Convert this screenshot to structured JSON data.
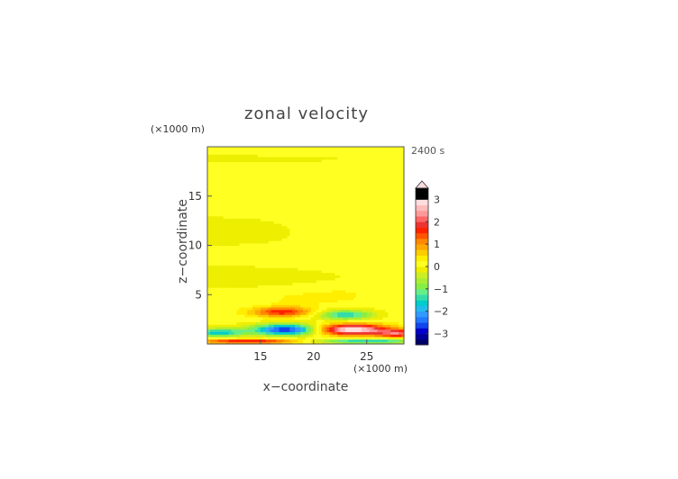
{
  "chart_data": {
    "type": "heatmap",
    "title": "zonal velocity",
    "xlabel": "x−coordinate",
    "ylabel": "z−coordinate",
    "x_unit": "(×1000 m)",
    "y_unit": "(×1000 m)",
    "time_label": "2400 s",
    "xlim": [
      10,
      28.5
    ],
    "ylim": [
      0,
      20
    ],
    "x_ticks": [
      15,
      20,
      25
    ],
    "y_ticks": [
      5,
      10,
      15
    ],
    "x_tick_labels": [
      "15",
      "20",
      "25"
    ],
    "y_tick_labels": [
      "5",
      "10",
      "15"
    ],
    "colorbar": {
      "range": [
        -3.5,
        3.5
      ],
      "step": 0.25,
      "ticks": [
        3,
        2,
        1,
        0,
        -1,
        -2,
        -3
      ],
      "tick_labels": [
        "3",
        "2",
        "1",
        "0",
        "−1",
        "−2",
        "−3"
      ],
      "extend": "max",
      "colors": [
        "#000066",
        "#000099",
        "#0000CC",
        "#1144EE",
        "#2277FF",
        "#3399FF",
        "#22BBEE",
        "#00CCCC",
        "#33DDAA",
        "#66EE88",
        "#88EE44",
        "#AAEE33",
        "#CCEE22",
        "#EEEE00",
        "#FFFF22",
        "#FFEE00",
        "#FFCC00",
        "#FFAA00",
        "#FF8800",
        "#FF5500",
        "#FF2200",
        "#EE3333",
        "#FF6666",
        "#FF9999",
        "#FFBBBB",
        "#FFDDDD"
      ]
    },
    "background_value": 0.1,
    "features": [
      {
        "x": 10.0,
        "z": 18.8,
        "sx": 20,
        "sz": 0.55,
        "value": -0.15
      },
      {
        "x": 10.0,
        "z": 11.5,
        "sx": 20,
        "sz": 2.2,
        "value": -0.15
      },
      {
        "x": 10.0,
        "z": 6.8,
        "sx": 20,
        "sz": 1.6,
        "value": -0.15
      },
      {
        "x": 25.0,
        "z": 12.8,
        "sx": 6,
        "sz": 2.8,
        "value": 0.15
      },
      {
        "x": 18.5,
        "z": 4.6,
        "sx": 2.5,
        "sz": 0.8,
        "value": 0.25
      },
      {
        "x": 22.5,
        "z": 5.0,
        "sx": 2.5,
        "sz": 0.8,
        "value": 0.25
      },
      {
        "x": 17.0,
        "z": 3.3,
        "sx": 2.8,
        "sz": 0.5,
        "value": 1.6
      },
      {
        "x": 23.0,
        "z": 3.0,
        "sx": 2.5,
        "sz": 0.5,
        "value": -1.6
      },
      {
        "x": 17.5,
        "z": 1.5,
        "sx": 3.2,
        "sz": 0.55,
        "value": -3.0
      },
      {
        "x": 23.5,
        "z": 1.5,
        "sx": 3.5,
        "sz": 0.55,
        "value": 3.0
      },
      {
        "x": 11.0,
        "z": 1.2,
        "sx": 2.5,
        "sz": 0.4,
        "value": -1.8
      },
      {
        "x": 28.0,
        "z": 1.1,
        "sx": 2.0,
        "sz": 0.4,
        "value": 1.8
      },
      {
        "x": 14.0,
        "z": 0.3,
        "sx": 5.0,
        "sz": 0.25,
        "value": 1.8
      },
      {
        "x": 25.0,
        "z": 0.3,
        "sx": 5.0,
        "sz": 0.25,
        "value": -1.8
      }
    ]
  }
}
